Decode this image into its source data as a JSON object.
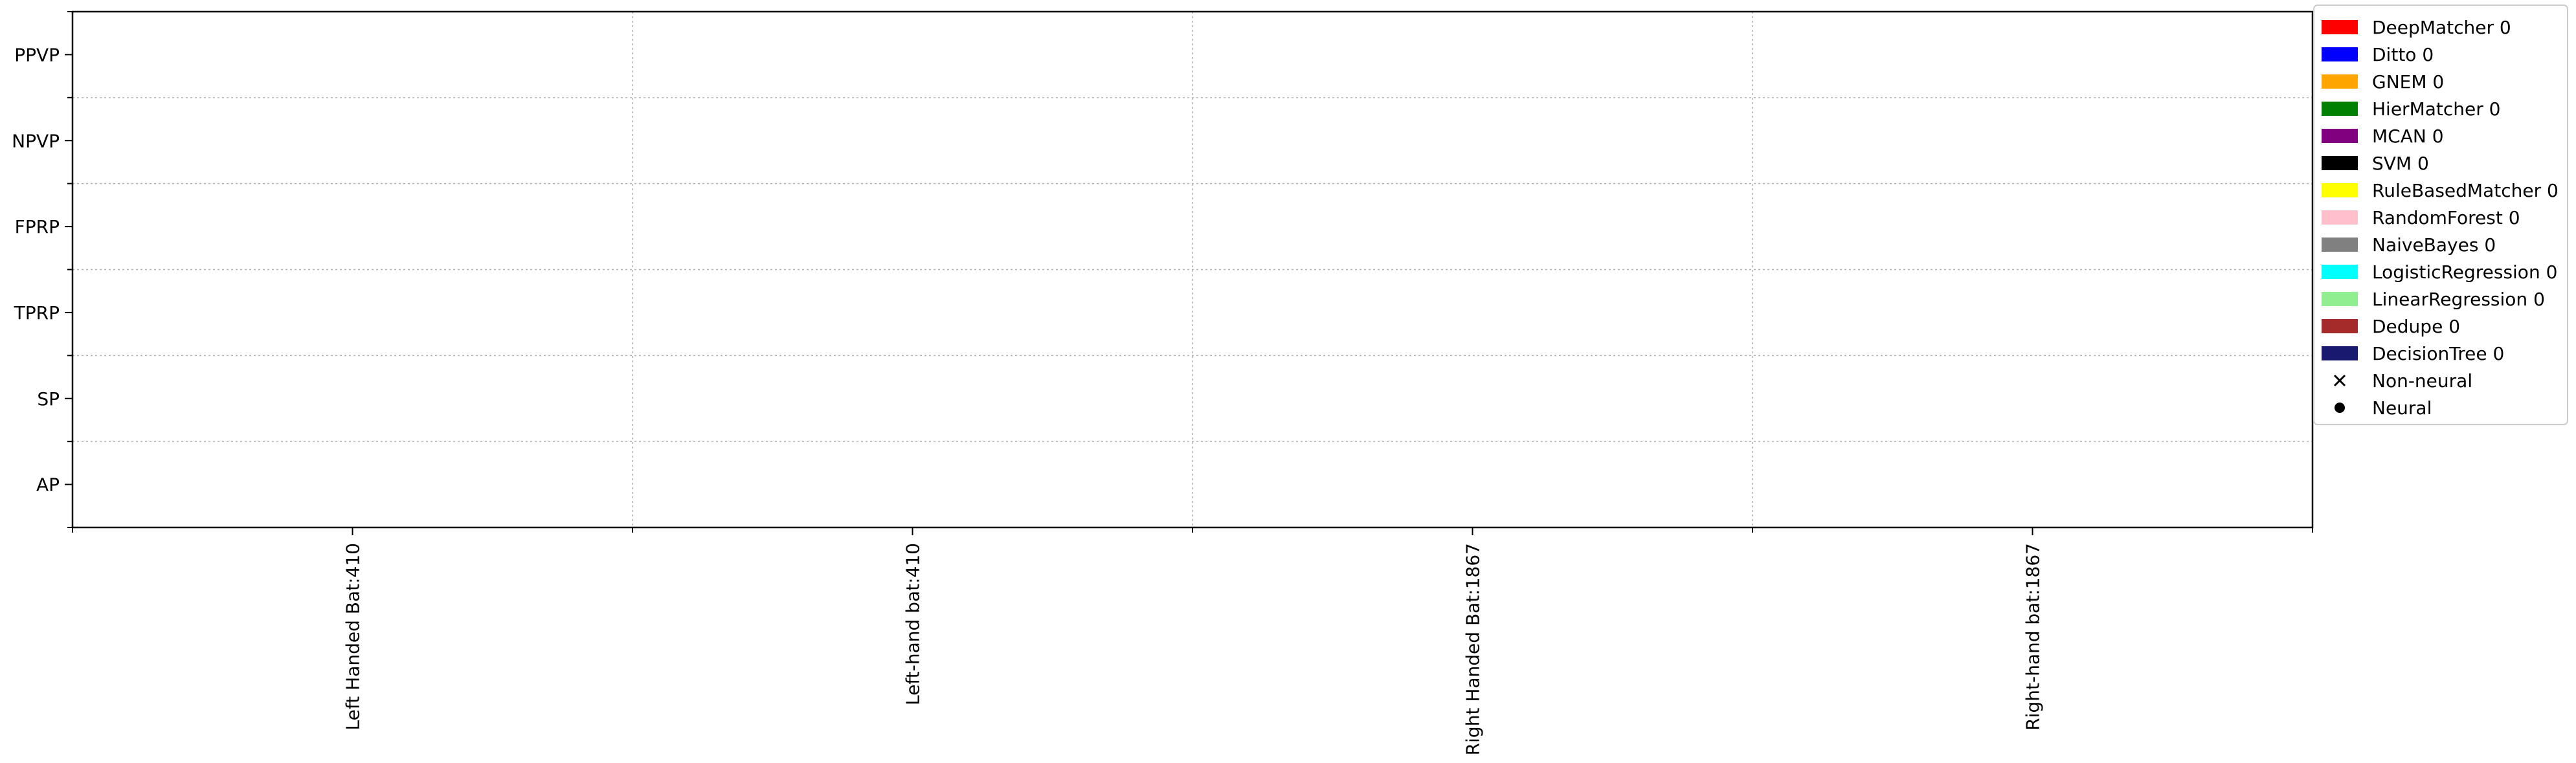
{
  "chart_data": {
    "type": "scatter",
    "title": "",
    "xlabel": "",
    "ylabel": "",
    "categories": [
      "Left Handed Bat:410",
      "Left-hand bat:410",
      "Right Handed Bat:1867",
      "Right-hand bat:1867"
    ],
    "y_categories": [
      "PPVP",
      "NPVP",
      "FPRP",
      "TPRP",
      "SP",
      "AP"
    ],
    "grid": true,
    "legend_position": "top-right, outside the axes",
    "series": [
      {
        "name": "DeepMatcher 0",
        "color": "#ff0000",
        "values": []
      },
      {
        "name": "Ditto 0",
        "color": "#0000ff",
        "values": []
      },
      {
        "name": "GNEM 0",
        "color": "#ffa500",
        "values": []
      },
      {
        "name": "HierMatcher 0",
        "color": "#008000",
        "values": []
      },
      {
        "name": "MCAN 0",
        "color": "#800080",
        "values": []
      },
      {
        "name": "SVM 0",
        "color": "#000000",
        "values": []
      },
      {
        "name": "RuleBasedMatcher 0",
        "color": "#ffff00",
        "values": []
      },
      {
        "name": "RandomForest 0",
        "color": "#ffc0cb",
        "values": []
      },
      {
        "name": "NaiveBayes 0",
        "color": "#808080",
        "values": []
      },
      {
        "name": "LogisticRegression 0",
        "color": "#00ffff",
        "values": []
      },
      {
        "name": "LinearRegression 0",
        "color": "#90ee90",
        "values": []
      },
      {
        "name": "Dedupe 0",
        "color": "#a52a2a",
        "values": []
      },
      {
        "name": "DecisionTree 0",
        "color": "#191970",
        "values": []
      }
    ],
    "marker_legend": [
      {
        "name": "Non-neural",
        "marker": "x"
      },
      {
        "name": "Neural",
        "marker": "o"
      }
    ]
  }
}
